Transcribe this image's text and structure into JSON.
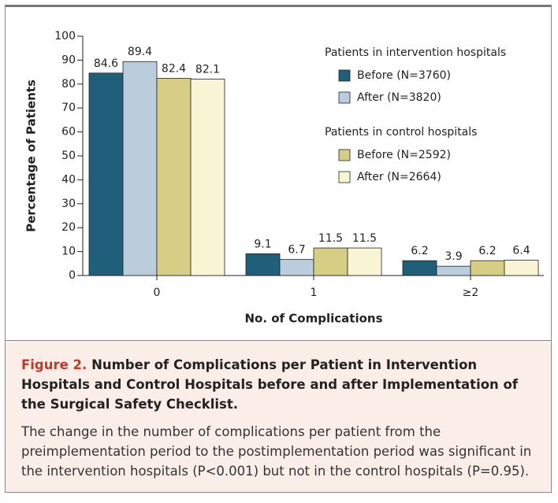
{
  "chart_data": {
    "type": "bar",
    "xlabel": "No. of Complications",
    "ylabel": "Percentage of Patients",
    "categories": [
      "0",
      "1",
      "≥2"
    ],
    "legend_groups": [
      {
        "title": "Patients in intervention hospitals"
      },
      {
        "title": "Patients in control hospitals"
      }
    ],
    "series": [
      {
        "name": "Before (N=3760)",
        "color": "#1f5f7a",
        "values": [
          84.6,
          9.1,
          6.2
        ]
      },
      {
        "name": "After (N=3820)",
        "color": "#b9cddd",
        "values": [
          89.4,
          6.7,
          3.9
        ]
      },
      {
        "name": "Before (N=2592)",
        "color": "#d6ce85",
        "values": [
          82.4,
          11.5,
          6.2
        ]
      },
      {
        "name": "After (N=2664)",
        "color": "#f9f5d4",
        "values": [
          82.1,
          11.5,
          6.4
        ]
      }
    ],
    "ylim": [
      0,
      100
    ],
    "yticks": [
      0,
      10,
      20,
      30,
      40,
      50,
      60,
      70,
      80,
      90,
      100
    ]
  },
  "caption": {
    "label": "Figure 2.",
    "title": "Number of Complications per Patient in Intervention Hospitals and Control Hospitals before and after Implementation of the Surgical Safety Checklist.",
    "body": "The change in the number of complications per patient from the preimplementation period to the postimplementation period was significant in the intervention hospitals (P<0.001) but not in the control hospitals (P=0.95)."
  }
}
